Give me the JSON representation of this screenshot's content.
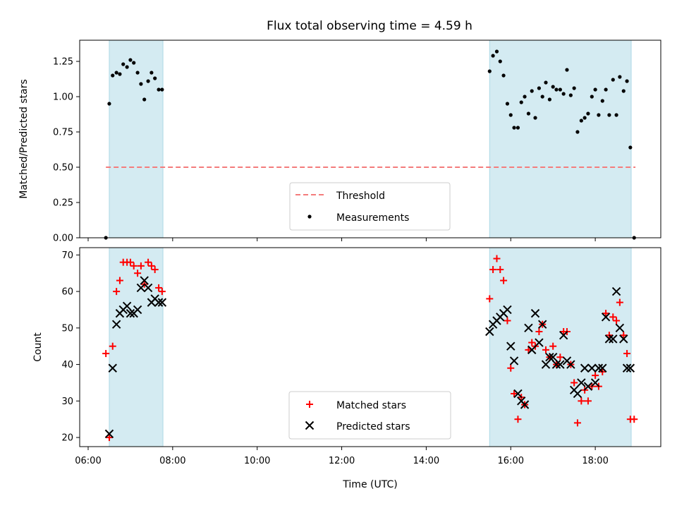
{
  "chart_data": {
    "title": "Flux total observing time = 4.59 h",
    "xlabel": "Time (UTC)",
    "x_ticks": [
      "06:00",
      "08:00",
      "10:00",
      "12:00",
      "14:00",
      "16:00",
      "18:00"
    ],
    "x_tick_hours": [
      6,
      8,
      10,
      12,
      14,
      16,
      18
    ],
    "xlim_hours": [
      5.8,
      19.55
    ],
    "shaded_intervals_hours": [
      [
        6.5,
        7.77
      ],
      [
        15.5,
        18.85
      ]
    ],
    "shade_color": "#d4ebf2",
    "panels": [
      {
        "type": "scatter",
        "ylabel": "Matched/Predicted stars",
        "ylim": [
          0,
          1.4
        ],
        "y_ticks": [
          "0.00",
          "0.25",
          "0.50",
          "0.75",
          "1.00",
          "1.25"
        ],
        "y_tick_values": [
          0,
          0.25,
          0.5,
          0.75,
          1.0,
          1.25
        ],
        "threshold": {
          "name": "Threshold",
          "value": 0.5,
          "x_range_hours": [
            6.42,
            18.95
          ],
          "color": "#f47c7c"
        },
        "legend": [
          "Threshold",
          "Measurements"
        ],
        "legend_position": "lower-center",
        "series": [
          {
            "name": "Measurements",
            "color": "#000000",
            "marker": "dot",
            "points": [
              [
                6.42,
                0.0
              ],
              [
                6.5,
                0.95
              ],
              [
                6.58,
                1.15
              ],
              [
                6.67,
                1.17
              ],
              [
                6.75,
                1.16
              ],
              [
                6.83,
                1.23
              ],
              [
                6.92,
                1.21
              ],
              [
                7.0,
                1.26
              ],
              [
                7.08,
                1.24
              ],
              [
                7.17,
                1.17
              ],
              [
                7.25,
                1.09
              ],
              [
                7.33,
                0.98
              ],
              [
                7.42,
                1.11
              ],
              [
                7.5,
                1.17
              ],
              [
                7.58,
                1.13
              ],
              [
                7.67,
                1.05
              ],
              [
                7.75,
                1.05
              ],
              [
                15.5,
                1.18
              ],
              [
                15.58,
                1.29
              ],
              [
                15.67,
                1.32
              ],
              [
                15.75,
                1.25
              ],
              [
                15.83,
                1.15
              ],
              [
                15.92,
                0.95
              ],
              [
                16.0,
                0.87
              ],
              [
                16.08,
                0.78
              ],
              [
                16.17,
                0.78
              ],
              [
                16.25,
                0.96
              ],
              [
                16.33,
                1.0
              ],
              [
                16.42,
                0.88
              ],
              [
                16.5,
                1.04
              ],
              [
                16.58,
                0.85
              ],
              [
                16.67,
                1.06
              ],
              [
                16.75,
                1.0
              ],
              [
                16.83,
                1.1
              ],
              [
                16.92,
                0.98
              ],
              [
                17.0,
                1.07
              ],
              [
                17.08,
                1.05
              ],
              [
                17.17,
                1.05
              ],
              [
                17.25,
                1.02
              ],
              [
                17.33,
                1.19
              ],
              [
                17.42,
                1.01
              ],
              [
                17.5,
                1.06
              ],
              [
                17.58,
                0.75
              ],
              [
                17.67,
                0.83
              ],
              [
                17.75,
                0.85
              ],
              [
                17.83,
                0.88
              ],
              [
                17.92,
                1.0
              ],
              [
                18.0,
                1.05
              ],
              [
                18.08,
                0.87
              ],
              [
                18.17,
                0.97
              ],
              [
                18.25,
                1.05
              ],
              [
                18.33,
                0.87
              ],
              [
                18.42,
                1.12
              ],
              [
                18.5,
                0.87
              ],
              [
                18.58,
                1.14
              ],
              [
                18.67,
                1.04
              ],
              [
                18.75,
                1.11
              ],
              [
                18.83,
                0.64
              ],
              [
                18.92,
                0.0
              ]
            ]
          }
        ]
      },
      {
        "type": "scatter",
        "ylabel": "Count",
        "ylim": [
          17.5,
          72
        ],
        "y_ticks": [
          "20",
          "30",
          "40",
          "50",
          "60",
          "70"
        ],
        "y_tick_values": [
          20,
          30,
          40,
          50,
          60,
          70
        ],
        "legend": [
          "Matched stars",
          "Predicted stars"
        ],
        "legend_position": "lower-center",
        "series": [
          {
            "name": "Matched stars",
            "color": "#ff0000",
            "marker": "plus",
            "points": [
              [
                6.42,
                43
              ],
              [
                6.5,
                20
              ],
              [
                6.58,
                45
              ],
              [
                6.67,
                60
              ],
              [
                6.75,
                63
              ],
              [
                6.83,
                68
              ],
              [
                6.92,
                68
              ],
              [
                7.0,
                68
              ],
              [
                7.08,
                67
              ],
              [
                7.17,
                65
              ],
              [
                7.25,
                67
              ],
              [
                7.33,
                62
              ],
              [
                7.42,
                68
              ],
              [
                7.5,
                67
              ],
              [
                7.58,
                66
              ],
              [
                7.67,
                61
              ],
              [
                7.75,
                60
              ],
              [
                15.5,
                58
              ],
              [
                15.58,
                66
              ],
              [
                15.67,
                69
              ],
              [
                15.75,
                66
              ],
              [
                15.83,
                63
              ],
              [
                15.92,
                52
              ],
              [
                16.0,
                39
              ],
              [
                16.08,
                32
              ],
              [
                16.17,
                25
              ],
              [
                16.25,
                31
              ],
              [
                16.33,
                29
              ],
              [
                16.42,
                44
              ],
              [
                16.5,
                46
              ],
              [
                16.58,
                45
              ],
              [
                16.67,
                49
              ],
              [
                16.75,
                51
              ],
              [
                16.83,
                44
              ],
              [
                16.92,
                42
              ],
              [
                17.0,
                45
              ],
              [
                17.08,
                40
              ],
              [
                17.17,
                42
              ],
              [
                17.25,
                49
              ],
              [
                17.33,
                49
              ],
              [
                17.42,
                40
              ],
              [
                17.5,
                35
              ],
              [
                17.58,
                24
              ],
              [
                17.67,
                30
              ],
              [
                17.75,
                33
              ],
              [
                17.83,
                30
              ],
              [
                17.92,
                34
              ],
              [
                18.0,
                37
              ],
              [
                18.08,
                34
              ],
              [
                18.17,
                38
              ],
              [
                18.25,
                54
              ],
              [
                18.33,
                48
              ],
              [
                18.42,
                53
              ],
              [
                18.5,
                52
              ],
              [
                18.58,
                57
              ],
              [
                18.67,
                48
              ],
              [
                18.75,
                43
              ],
              [
                18.83,
                25
              ],
              [
                18.92,
                25
              ]
            ]
          },
          {
            "name": "Predicted stars",
            "color": "#000000",
            "marker": "x",
            "points": [
              [
                6.5,
                21
              ],
              [
                6.58,
                39
              ],
              [
                6.67,
                51
              ],
              [
                6.75,
                54
              ],
              [
                6.83,
                55
              ],
              [
                6.92,
                56
              ],
              [
                7.0,
                54
              ],
              [
                7.08,
                54
              ],
              [
                7.17,
                55
              ],
              [
                7.25,
                61
              ],
              [
                7.33,
                63
              ],
              [
                7.42,
                61
              ],
              [
                7.5,
                57
              ],
              [
                7.58,
                58
              ],
              [
                7.67,
                57
              ],
              [
                7.75,
                57
              ],
              [
                15.5,
                49
              ],
              [
                15.58,
                51
              ],
              [
                15.67,
                52
              ],
              [
                15.75,
                53
              ],
              [
                15.83,
                54
              ],
              [
                15.92,
                55
              ],
              [
                16.0,
                45
              ],
              [
                16.08,
                41
              ],
              [
                16.17,
                32
              ],
              [
                16.25,
                30
              ],
              [
                16.33,
                29
              ],
              [
                16.42,
                50
              ],
              [
                16.5,
                44
              ],
              [
                16.58,
                54
              ],
              [
                16.67,
                46
              ],
              [
                16.75,
                51
              ],
              [
                16.83,
                40
              ],
              [
                16.92,
                42
              ],
              [
                17.0,
                42
              ],
              [
                17.08,
                40
              ],
              [
                17.17,
                40
              ],
              [
                17.25,
                48
              ],
              [
                17.33,
                41
              ],
              [
                17.42,
                40
              ],
              [
                17.5,
                33
              ],
              [
                17.58,
                32
              ],
              [
                17.67,
                35
              ],
              [
                17.75,
                39
              ],
              [
                17.83,
                34
              ],
              [
                17.92,
                39
              ],
              [
                18.0,
                35
              ],
              [
                18.08,
                39
              ],
              [
                18.17,
                39
              ],
              [
                18.25,
                53
              ],
              [
                18.33,
                47
              ],
              [
                18.42,
                47
              ],
              [
                18.5,
                60
              ],
              [
                18.58,
                50
              ],
              [
                18.67,
                47
              ],
              [
                18.75,
                39
              ],
              [
                18.83,
                39
              ]
            ]
          }
        ]
      }
    ]
  }
}
